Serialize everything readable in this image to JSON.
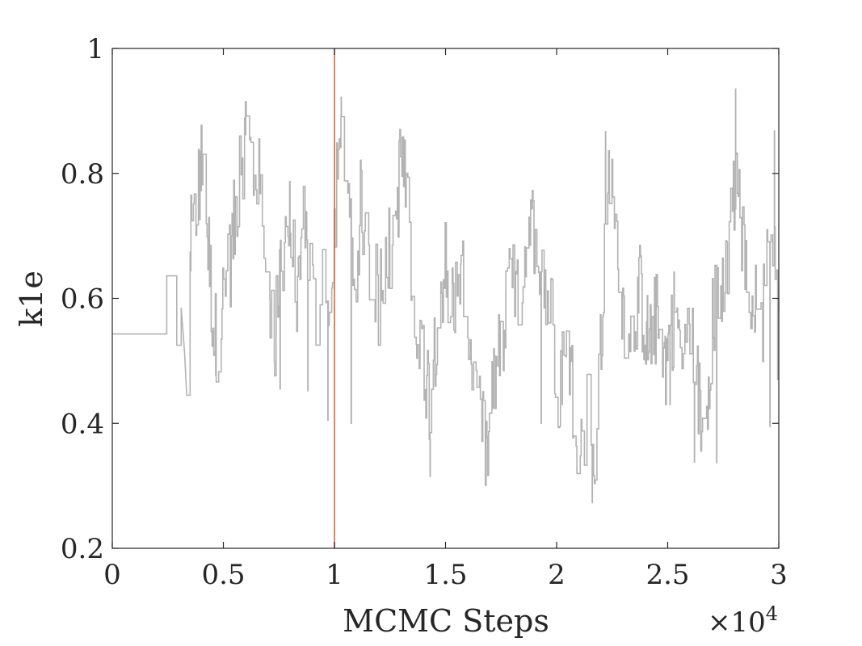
{
  "chart_data": {
    "type": "line",
    "title": "",
    "xlabel": "MCMC Steps",
    "ylabel": "k1e",
    "x_exponent_label": {
      "base": "×10",
      "exp": "4"
    },
    "xlim": [
      0,
      30000
    ],
    "ylim": [
      0.2,
      1.0
    ],
    "x_ticks": [
      0,
      5000,
      10000,
      15000,
      20000,
      25000,
      30000
    ],
    "x_tick_labels": [
      "0",
      "0.5",
      "1",
      "1.5",
      "2",
      "2.5",
      "3"
    ],
    "y_ticks": [
      0.2,
      0.4,
      0.6,
      0.8,
      1.0
    ],
    "y_tick_labels": [
      "0.2",
      "0.4",
      "0.6",
      "0.8",
      "1"
    ],
    "grid": false,
    "box": true,
    "vertical_marker": {
      "x": 10000,
      "color": "#d0693a"
    },
    "series": [
      {
        "color": "#b3b3b3",
        "step_segments": [
          [
            0,
            0.543
          ],
          [
            2450,
            0.543
          ],
          [
            2450,
            0.636
          ],
          [
            2900,
            0.636
          ],
          [
            2900,
            0.525
          ],
          [
            3100,
            0.525
          ],
          [
            3100,
            0.585
          ],
          [
            3250,
            0.515
          ],
          [
            3350,
            0.445
          ],
          [
            3500,
            0.445
          ],
          [
            3500,
            0.675
          ]
        ],
        "anchors": [
          [
            3500,
            0.675
          ],
          [
            3800,
            0.76
          ],
          [
            4000,
            0.81
          ],
          [
            4300,
            0.69
          ],
          [
            4600,
            0.53
          ],
          [
            4900,
            0.58
          ],
          [
            5200,
            0.63
          ],
          [
            5500,
            0.72
          ],
          [
            5800,
            0.84
          ],
          [
            6200,
            0.83
          ],
          [
            6600,
            0.78
          ],
          [
            6900,
            0.66
          ],
          [
            7100,
            0.56
          ],
          [
            7300,
            0.52
          ],
          [
            7600,
            0.68
          ],
          [
            8000,
            0.72
          ],
          [
            8300,
            0.58
          ],
          [
            8600,
            0.74
          ],
          [
            8900,
            0.64
          ],
          [
            9200,
            0.56
          ],
          [
            9500,
            0.62
          ],
          [
            9800,
            0.55
          ],
          [
            10100,
            0.78
          ],
          [
            10300,
            0.86
          ],
          [
            10600,
            0.72
          ],
          [
            10900,
            0.62
          ],
          [
            11200,
            0.76
          ],
          [
            11600,
            0.66
          ],
          [
            12000,
            0.6
          ],
          [
            12300,
            0.71
          ],
          [
            12600,
            0.64
          ],
          [
            13000,
            0.84
          ],
          [
            13300,
            0.72
          ],
          [
            13700,
            0.55
          ],
          [
            14000,
            0.51
          ],
          [
            14300,
            0.44
          ],
          [
            14600,
            0.57
          ],
          [
            15000,
            0.66
          ],
          [
            15300,
            0.6
          ],
          [
            15700,
            0.63
          ],
          [
            16000,
            0.56
          ],
          [
            16300,
            0.45
          ],
          [
            16600,
            0.38
          ],
          [
            16900,
            0.35
          ],
          [
            17200,
            0.47
          ],
          [
            17600,
            0.55
          ],
          [
            18000,
            0.64
          ],
          [
            18300,
            0.57
          ],
          [
            18600,
            0.68
          ],
          [
            19000,
            0.72
          ],
          [
            19400,
            0.63
          ],
          [
            19800,
            0.56
          ],
          [
            20100,
            0.46
          ],
          [
            20500,
            0.52
          ],
          [
            20800,
            0.43
          ],
          [
            21100,
            0.35
          ],
          [
            21400,
            0.42
          ],
          [
            21700,
            0.32
          ],
          [
            22000,
            0.52
          ],
          [
            22300,
            0.8
          ],
          [
            22600,
            0.72
          ],
          [
            22900,
            0.6
          ],
          [
            23300,
            0.55
          ],
          [
            23700,
            0.62
          ],
          [
            24100,
            0.53
          ],
          [
            24500,
            0.57
          ],
          [
            24900,
            0.5
          ],
          [
            25300,
            0.58
          ],
          [
            25700,
            0.5
          ],
          [
            26000,
            0.55
          ],
          [
            26300,
            0.47
          ],
          [
            26600,
            0.37
          ],
          [
            26900,
            0.52
          ],
          [
            27200,
            0.62
          ],
          [
            27500,
            0.59
          ],
          [
            27800,
            0.7
          ],
          [
            28100,
            0.82
          ],
          [
            28400,
            0.66
          ],
          [
            28800,
            0.6
          ],
          [
            29200,
            0.55
          ],
          [
            29500,
            0.65
          ],
          [
            29800,
            0.72
          ],
          [
            30000,
            0.58
          ]
        ],
        "spikes": [
          [
            4000,
            0.815
          ],
          [
            4650,
            0.477
          ],
          [
            6000,
            0.862
          ],
          [
            7550,
            0.455
          ],
          [
            8800,
            0.452
          ],
          [
            9700,
            0.405
          ],
          [
            10300,
            0.922
          ],
          [
            10750,
            0.4
          ],
          [
            13050,
            0.857
          ],
          [
            14300,
            0.315
          ],
          [
            16900,
            0.322
          ],
          [
            19300,
            0.4
          ],
          [
            20250,
            0.43
          ],
          [
            21600,
            0.273
          ],
          [
            22200,
            0.867
          ],
          [
            25100,
            0.43
          ],
          [
            26200,
            0.338
          ],
          [
            27200,
            0.337
          ],
          [
            28050,
            0.935
          ],
          [
            29600,
            0.395
          ],
          [
            29800,
            0.868
          ],
          [
            29950,
            0.47
          ]
        ]
      }
    ]
  }
}
